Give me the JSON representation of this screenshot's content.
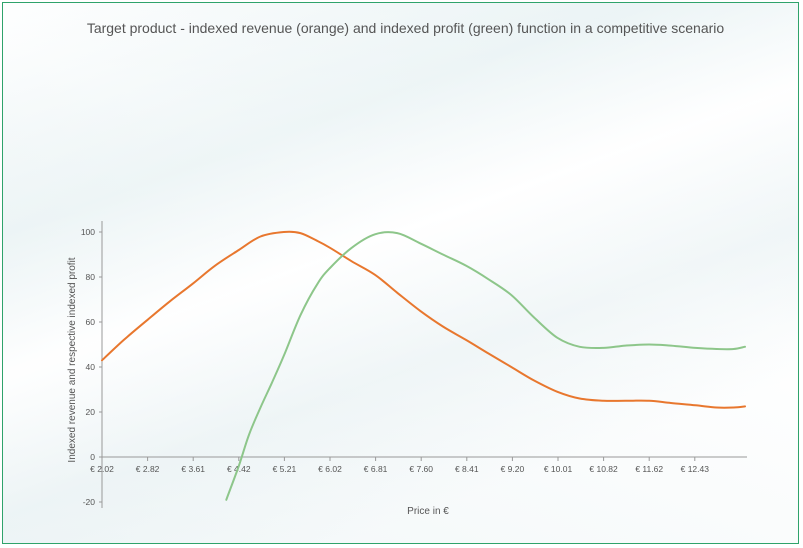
{
  "chart_data": {
    "type": "line",
    "title": "Target product - indexed revenue (orange) and indexed profit (green) function in a competitive scenario",
    "xlabel": "Price in €",
    "ylabel": "Indexed revenue and respective indexed profit",
    "x_ticks": [
      "€ 2.02",
      "€ 2.82",
      "€ 3.61",
      "€ 4.42",
      "€ 5.21",
      "€ 6.02",
      "€ 6.81",
      "€ 7.60",
      "€ 8.41",
      "€ 9.20",
      "€ 10.01",
      "€ 10.82",
      "€ 11.62",
      "€ 12.43"
    ],
    "x_range": [
      2.02,
      13.46
    ],
    "ylim": [
      -20,
      100
    ],
    "y_ticks": [
      -20,
      0,
      20,
      40,
      60,
      80,
      100
    ],
    "grid": false,
    "series": [
      {
        "name": "",
        "color": "#e8772e",
        "x": [
          2.02,
          2.4,
          2.82,
          3.2,
          3.61,
          4.0,
          4.42,
          4.8,
          5.21,
          5.5,
          5.8,
          6.02,
          6.4,
          6.81,
          7.2,
          7.6,
          8.0,
          8.41,
          8.8,
          9.2,
          9.6,
          10.01,
          10.4,
          10.82,
          11.2,
          11.62,
          12.0,
          12.43,
          12.8,
          13.1,
          13.3
        ],
        "values": [
          43,
          52,
          61,
          69,
          77,
          85,
          92,
          98,
          100,
          99.5,
          96,
          93,
          87,
          81,
          73,
          65,
          58,
          52,
          46,
          40,
          34,
          29,
          26,
          25,
          25,
          25,
          24,
          23,
          22,
          22,
          22.5
        ]
      },
      {
        "name": "",
        "color": "#8dc68a",
        "x": [
          4.2,
          4.42,
          4.6,
          4.8,
          5.0,
          5.21,
          5.5,
          5.8,
          6.02,
          6.4,
          6.81,
          7.2,
          7.6,
          8.0,
          8.41,
          8.8,
          9.2,
          9.6,
          10.01,
          10.4,
          10.82,
          11.2,
          11.62,
          12.0,
          12.43,
          12.8,
          13.1,
          13.3
        ],
        "values": [
          -19,
          -4,
          10,
          22,
          33,
          45,
          63,
          77,
          84,
          93,
          99,
          99.5,
          95,
          90,
          85,
          79,
          72,
          62,
          53,
          49,
          48.5,
          49.5,
          50,
          49.5,
          48.5,
          48,
          48,
          49
        ]
      }
    ]
  }
}
